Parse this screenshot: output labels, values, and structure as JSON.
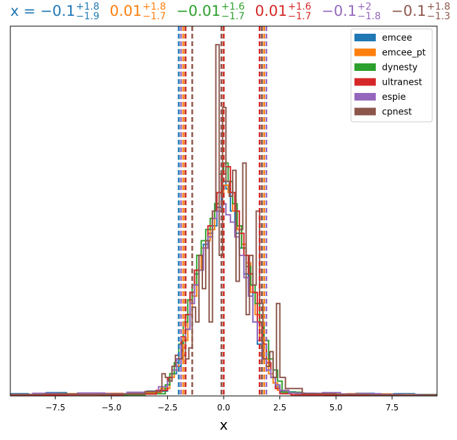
{
  "chart_data": {
    "type": "step-histogram",
    "title_prefix": "x = ",
    "xlabel": "x",
    "ylabel": "",
    "xlim": [
      -9.5,
      9.5
    ],
    "ylim": [
      0,
      1
    ],
    "xticks": [
      -7.5,
      -5.0,
      -2.5,
      0.0,
      2.5,
      5.0,
      7.5
    ],
    "xtick_labels": [
      "−7.5",
      "−5.0",
      "−2.5",
      "0.0",
      "2.5",
      "5.0",
      "7.5"
    ],
    "grid": false,
    "legend_position": "top-right",
    "series": [
      {
        "name": "emcee",
        "color": "#1f77b4",
        "summary": {
          "median": "−0.1",
          "plus": "+1.8",
          "minus": "−1.9"
        },
        "lines": [
          -2.0,
          -0.1,
          1.7
        ],
        "bins": [
          -9.5,
          -8.7,
          -7.9,
          -7.0,
          -6.0,
          -5.1,
          -4.3,
          -3.4,
          -2.5,
          -2.3,
          -2.1,
          -1.9,
          -1.7,
          -1.5,
          -1.3,
          -1.1,
          -0.9,
          -0.7,
          -0.5,
          -0.3,
          -0.1,
          0.1,
          0.3,
          0.5,
          0.7,
          0.9,
          1.1,
          1.3,
          1.5,
          1.7,
          1.9,
          2.1,
          2.3,
          2.5,
          3.2,
          4.1,
          5.0,
          5.9,
          6.7,
          7.6,
          8.5,
          9.5
        ],
        "counts": [
          0.006,
          0.004,
          0.009,
          0.004,
          0.005,
          0.003,
          0.008,
          0.013,
          0.04,
          0.06,
          0.08,
          0.11,
          0.18,
          0.28,
          0.33,
          0.38,
          0.41,
          0.44,
          0.46,
          0.51,
          0.58,
          0.56,
          0.5,
          0.44,
          0.4,
          0.33,
          0.3,
          0.2,
          0.14,
          0.1,
          0.07,
          0.05,
          0.025,
          0.011,
          0.007,
          0.006,
          0.004,
          0.007,
          0.005,
          0.006,
          0.004
        ]
      },
      {
        "name": "emcee_pt",
        "color": "#ff7f0e",
        "summary": {
          "median": "0.01",
          "plus": "+1.8",
          "minus": "−1.7"
        },
        "lines": [
          -1.8,
          0.0,
          1.8
        ],
        "bins": [
          -9.5,
          -8.5,
          -7.5,
          -6.5,
          -5.5,
          -4.5,
          -3.5,
          -2.8,
          -2.4,
          -2.2,
          -2.0,
          -1.8,
          -1.6,
          -1.4,
          -1.2,
          -1.0,
          -0.8,
          -0.6,
          -0.4,
          -0.2,
          0.0,
          0.2,
          0.4,
          0.6,
          0.8,
          1.0,
          1.2,
          1.4,
          1.6,
          1.8,
          2.0,
          2.2,
          2.4,
          2.8,
          3.5,
          4.5,
          5.5,
          6.5,
          7.5,
          8.5,
          9.5
        ],
        "counts": [
          0.004,
          0.005,
          0.006,
          0.005,
          0.007,
          0.006,
          0.009,
          0.02,
          0.05,
          0.07,
          0.1,
          0.15,
          0.22,
          0.27,
          0.34,
          0.4,
          0.42,
          0.45,
          0.5,
          0.55,
          0.57,
          0.55,
          0.5,
          0.45,
          0.41,
          0.36,
          0.28,
          0.22,
          0.15,
          0.1,
          0.06,
          0.035,
          0.015,
          0.008,
          0.006,
          0.005,
          0.006,
          0.005,
          0.004,
          0.003
        ]
      },
      {
        "name": "dynesty",
        "color": "#2ca02c",
        "summary": {
          "median": "−0.01",
          "plus": "+1.6",
          "minus": "−1.7"
        },
        "lines": [
          -1.7,
          0.0,
          1.6
        ],
        "bins": [
          -9.5,
          -7.5,
          -5.5,
          -3.5,
          -2.6,
          -2.4,
          -2.2,
          -2.0,
          -1.8,
          -1.6,
          -1.4,
          -1.2,
          -1.0,
          -0.8,
          -0.6,
          -0.4,
          -0.2,
          0.0,
          0.2,
          0.4,
          0.6,
          0.8,
          1.0,
          1.2,
          1.4,
          1.6,
          1.8,
          2.0,
          2.2,
          2.4,
          2.6,
          3.5,
          5.5,
          7.5,
          9.5
        ],
        "counts": [
          0.003,
          0.004,
          0.003,
          0.006,
          0.03,
          0.06,
          0.09,
          0.14,
          0.2,
          0.26,
          0.3,
          0.38,
          0.42,
          0.45,
          0.48,
          0.52,
          0.6,
          0.63,
          0.58,
          0.52,
          0.46,
          0.4,
          0.35,
          0.3,
          0.25,
          0.2,
          0.15,
          0.1,
          0.07,
          0.04,
          0.01,
          0.004,
          0.003,
          0.002
        ]
      },
      {
        "name": "ultranest",
        "color": "#d62728",
        "summary": {
          "median": "0.01",
          "plus": "+1.6",
          "minus": "−1.7"
        },
        "lines": [
          -1.7,
          0.0,
          1.6
        ],
        "bins": [
          -9.5,
          -7.0,
          -4.5,
          -3.0,
          -2.5,
          -2.3,
          -2.1,
          -1.9,
          -1.7,
          -1.5,
          -1.3,
          -1.1,
          -0.9,
          -0.7,
          -0.5,
          -0.3,
          -0.1,
          0.1,
          0.3,
          0.5,
          0.7,
          0.9,
          1.1,
          1.3,
          1.5,
          1.7,
          1.9,
          2.1,
          2.3,
          2.5,
          3.0,
          4.5,
          7.0,
          9.5
        ],
        "counts": [
          0.002,
          0.003,
          0.005,
          0.015,
          0.05,
          0.08,
          0.1,
          0.16,
          0.22,
          0.28,
          0.34,
          0.38,
          0.4,
          0.46,
          0.5,
          0.55,
          0.6,
          0.62,
          0.55,
          0.5,
          0.44,
          0.38,
          0.33,
          0.28,
          0.2,
          0.14,
          0.09,
          0.05,
          0.02,
          0.006,
          0.003,
          0.002,
          0.001
        ]
      },
      {
        "name": "espie",
        "color": "#9467bd",
        "summary": {
          "median": "−0.1",
          "plus": "+2",
          "minus": "−1.8"
        },
        "lines": [
          -1.9,
          -0.1,
          1.9
        ],
        "bins": [
          -9.5,
          -8.5,
          -7.4,
          -6.5,
          -5.3,
          -4.3,
          -3.5,
          -2.9,
          -2.5,
          -2.3,
          -2.1,
          -1.9,
          -1.7,
          -1.5,
          -1.3,
          -1.1,
          -0.9,
          -0.7,
          -0.5,
          -0.3,
          -0.1,
          0.1,
          0.3,
          0.5,
          0.7,
          0.9,
          1.1,
          1.3,
          1.5,
          1.7,
          1.9,
          2.1,
          2.3,
          2.5,
          2.9,
          3.6,
          4.4,
          5.2,
          6.1,
          7.0,
          7.9,
          8.8,
          9.5
        ],
        "counts": [
          0.004,
          0.007,
          0.005,
          0.008,
          0.006,
          0.01,
          0.012,
          0.025,
          0.04,
          0.07,
          0.1,
          0.13,
          0.18,
          0.25,
          0.3,
          0.34,
          0.4,
          0.43,
          0.48,
          0.5,
          0.52,
          0.49,
          0.47,
          0.43,
          0.38,
          0.32,
          0.27,
          0.2,
          0.15,
          0.1,
          0.07,
          0.05,
          0.03,
          0.015,
          0.008,
          0.007,
          0.009,
          0.005,
          0.006,
          0.004,
          0.003,
          0.002
        ]
      },
      {
        "name": "cpnest",
        "color": "#8c564b",
        "summary": {
          "median": "−0.1",
          "plus": "+1.8",
          "minus": "−1.3"
        },
        "lines": [
          -1.4,
          -0.1,
          1.7
        ],
        "bins": [
          -9.5,
          -8.0,
          -6.5,
          -5.0,
          -3.5,
          -2.75,
          -2.6,
          -2.45,
          -2.3,
          -2.15,
          -2.0,
          -1.85,
          -1.7,
          -1.55,
          -1.4,
          -1.25,
          -1.1,
          -0.95,
          -0.8,
          -0.65,
          -0.5,
          -0.35,
          -0.2,
          -0.05,
          0.1,
          0.25,
          0.4,
          0.55,
          0.7,
          0.85,
          1.0,
          1.15,
          1.3,
          1.45,
          1.6,
          1.75,
          1.9,
          2.05,
          2.2,
          2.35,
          2.5,
          2.75,
          3.5,
          5.0,
          6.5,
          8.0,
          9.5
        ],
        "counts": [
          0.004,
          0.005,
          0.004,
          0.005,
          0.012,
          0.06,
          0.05,
          0.04,
          0.08,
          0.11,
          0.1,
          0.15,
          0.1,
          0.13,
          0.24,
          0.2,
          0.38,
          0.29,
          0.42,
          0.2,
          0.5,
          0.95,
          0.38,
          0.78,
          0.58,
          0.54,
          0.61,
          0.31,
          0.45,
          0.63,
          0.22,
          0.38,
          0.3,
          0.5,
          0.25,
          0.1,
          0.08,
          0.12,
          0.05,
          0.25,
          0.05,
          0.02,
          0.006,
          0.004,
          0.003,
          0.002
        ]
      }
    ]
  }
}
